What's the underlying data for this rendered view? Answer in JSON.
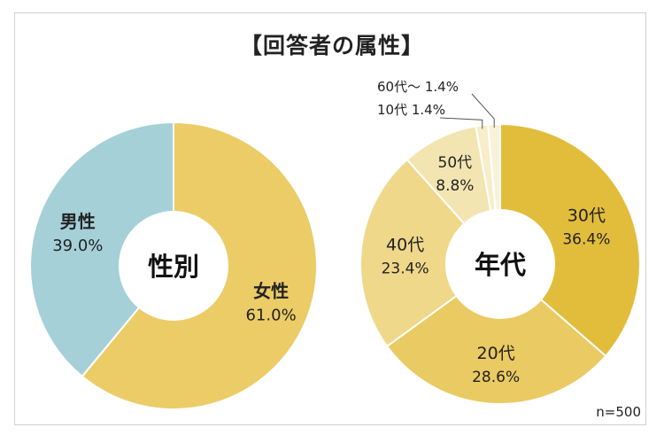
{
  "title": "【回答者の属性】",
  "note": "n=500",
  "chart_data": [
    {
      "type": "pie",
      "center_label": "性別",
      "slices": [
        {
          "name": "女性",
          "value": 61.0,
          "label": "61.0%",
          "color": "#ebcc67"
        },
        {
          "name": "男性",
          "value": 39.0,
          "label": "39.0%",
          "color": "#a5d0d8"
        }
      ]
    },
    {
      "type": "pie",
      "center_label": "年代",
      "slices": [
        {
          "name": "30代",
          "value": 36.4,
          "label": "36.4%",
          "color": "#e2bd3c"
        },
        {
          "name": "20代",
          "value": 28.6,
          "label": "28.6%",
          "color": "#eaca62"
        },
        {
          "name": "40代",
          "value": 23.4,
          "label": "23.4%",
          "color": "#efd889"
        },
        {
          "name": "50代",
          "value": 8.8,
          "label": "8.8%",
          "color": "#f3e5b1"
        },
        {
          "name": "10代",
          "value": 1.4,
          "label": "1.4%",
          "color": "#f7edc9"
        },
        {
          "name": "60代～",
          "value": 1.4,
          "label": "1.4%",
          "color": "#faf2d8"
        }
      ]
    }
  ]
}
